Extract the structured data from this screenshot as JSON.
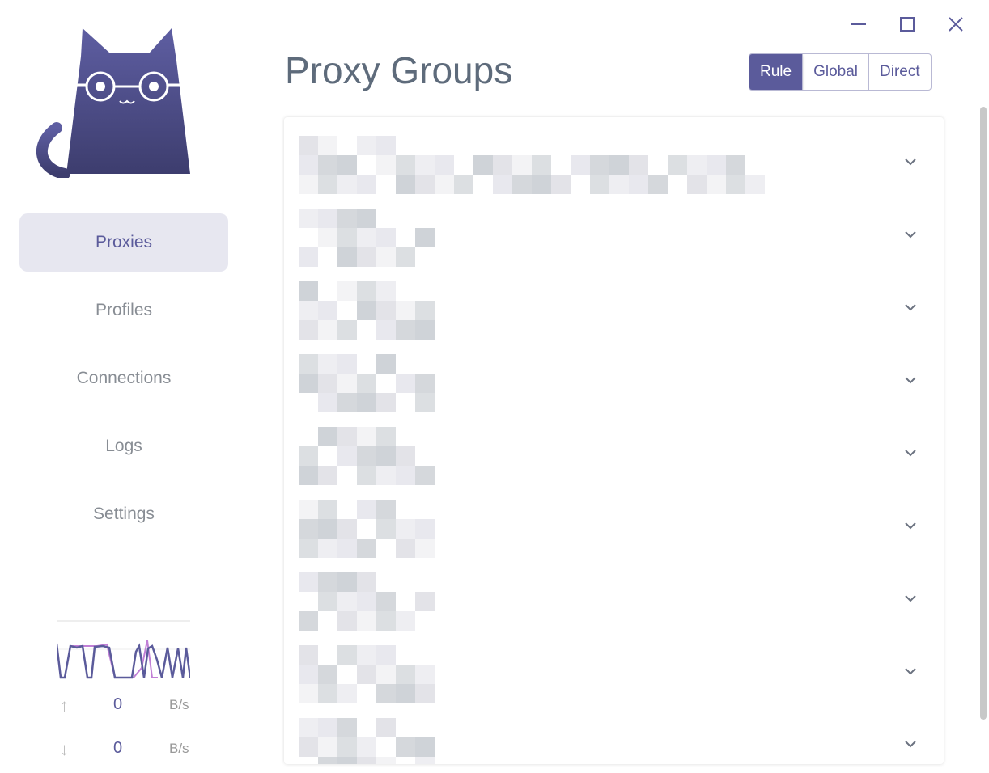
{
  "window": {
    "minimize_icon": "minimize-icon",
    "maximize_icon": "maximize-icon",
    "close_icon": "close-icon"
  },
  "sidebar": {
    "items": [
      {
        "label": "Proxies",
        "active": true
      },
      {
        "label": "Profiles"
      },
      {
        "label": "Connections"
      },
      {
        "label": "Logs"
      },
      {
        "label": "Settings"
      }
    ]
  },
  "header": {
    "title": "Proxy Groups"
  },
  "modes": [
    {
      "label": "Rule",
      "selected": true
    },
    {
      "label": "Global"
    },
    {
      "label": "Direct"
    }
  ],
  "groups_count": 9,
  "last_group_now": "DIRECT",
  "traffic": {
    "up_value": "0",
    "up_unit": "B/s",
    "down_value": "0",
    "down_unit": "B/s"
  },
  "colors": {
    "accent": "#5b5b9b",
    "upload_line": "#c17fd6",
    "download_line": "#5b5b9b"
  }
}
